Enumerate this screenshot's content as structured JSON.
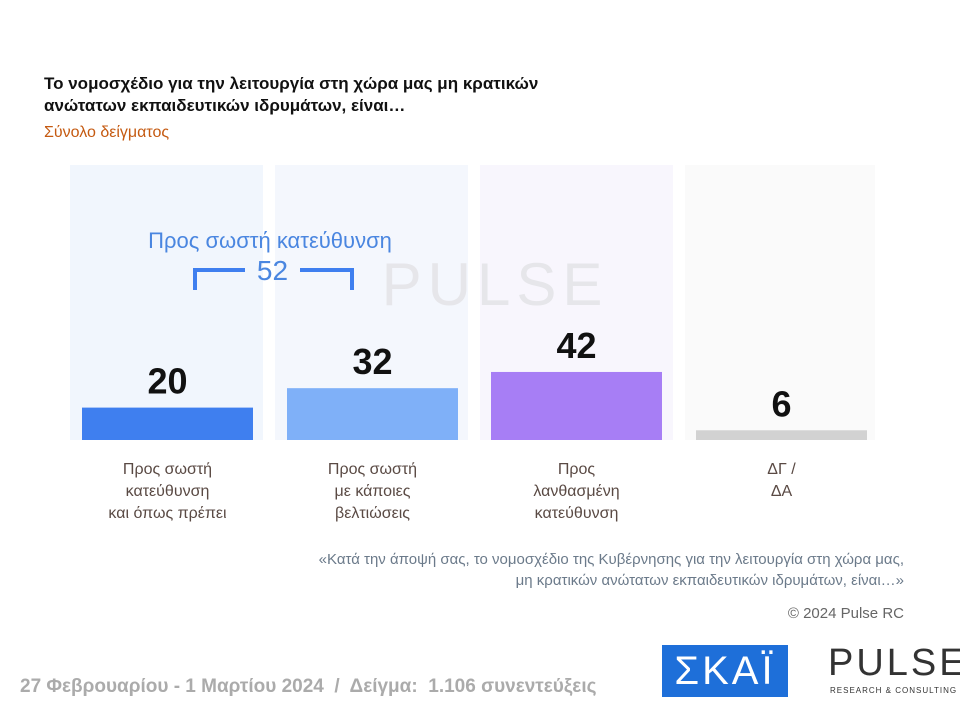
{
  "chart_data": {
    "type": "bar",
    "title": "Το νομοσχέδιο για την λειτουργία στη χώρα μας μη κρατικών\nανώτατων εκπαιδευτικών ιδρυμάτων, είναι…",
    "subtitle": "Σύνολο δείγματος",
    "categories": [
      "Προς σωστή\nκατεύθυνση\nκαι όπως πρέπει",
      "Προς σωστή\nμε κάποιες\nβελτιώσεις",
      "Προς\nλανθασμένη\nκατεύθυνση",
      "ΔΓ /\nΔΑ"
    ],
    "values": [
      20,
      32,
      42,
      6
    ],
    "colors": [
      "#3f7fef",
      "#7fb0f8",
      "#a77ef5",
      "#d2d2d2"
    ],
    "annotation": {
      "label": "Προς σωστή κατεύθυνση",
      "value": 52
    },
    "watermark": "PULSE",
    "note": "«Κατά την άποψή σας, το νομοσχέδιο της Κυβέρνησης για την λειτουργία στη χώρα μας,\nμη κρατικών ανώτατων εκπαιδευτικών ιδρυμάτων, είναι…»",
    "copyright": "© 2024 Pulse RC",
    "footer": "27 Φεβρουαρίου - 1 Μαρτίου 2024  /  Δείγμα:  1.106 συνεντεύξεις",
    "logos": {
      "skai": "ΣΚΑΪ",
      "pulse": "PULSE",
      "pulse_sub": "RESEARCH & CONSULTING"
    }
  }
}
